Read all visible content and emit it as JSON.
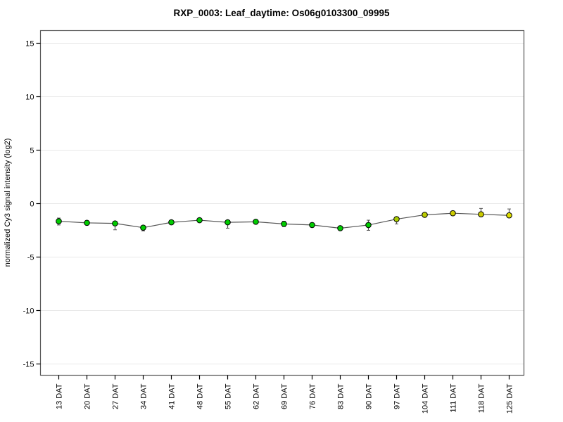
{
  "figure": {
    "background": "#FFFFFF"
  },
  "chart_data": {
    "type": "line",
    "title": "RXP_0003: Leaf_daytime: Os06g0103300_09995",
    "xlabel": "",
    "ylabel": "normalized Cy3 signal intensity (log2)",
    "ylim": [
      -16.1,
      16.2
    ],
    "yticks": [
      15,
      10,
      5,
      0,
      -5,
      -10,
      -15
    ],
    "ytick_labels": [
      "15",
      "10",
      "5",
      "0",
      "-5",
      "-10",
      "-15"
    ],
    "grid": true,
    "legend_position": "none",
    "categories": [
      "13 DAT",
      "20 DAT",
      "27 DAT",
      "34 DAT",
      "41 DAT",
      "48 DAT",
      "55 DAT",
      "62 DAT",
      "69 DAT",
      "76 DAT",
      "83 DAT",
      "90 DAT",
      "97 DAT",
      "104 DAT",
      "111 DAT",
      "118 DAT",
      "125 DAT"
    ],
    "series": [
      {
        "name": "normalized Cy3 signal intensity (log2)",
        "values": [
          -1.65,
          -1.8,
          -1.85,
          -2.25,
          -1.75,
          -1.55,
          -1.75,
          -1.7,
          -1.9,
          -2.0,
          -2.3,
          -2.0,
          -1.45,
          -1.05,
          -0.9,
          -1.0,
          -1.1
        ],
        "err_down": [
          0.35,
          0.2,
          0.6,
          0.3,
          0.2,
          0.1,
          0.55,
          0.1,
          0.25,
          0.15,
          0.15,
          0.5,
          0.45,
          0.1,
          0.1,
          0.15,
          0.2
        ],
        "err_up": [
          0.3,
          0.2,
          0.15,
          0.1,
          0.2,
          0.1,
          0.15,
          0.1,
          0.25,
          0.15,
          0.15,
          0.45,
          0.15,
          0.1,
          0.1,
          0.55,
          0.6
        ],
        "point_colors": [
          "#00CC00",
          "#00CC00",
          "#00CC00",
          "#00CC00",
          "#00CC00",
          "#00CC00",
          "#00CC00",
          "#00CC00",
          "#00CC00",
          "#00CC00",
          "#00CC00",
          "#00CC00",
          "#AACC00",
          "#BBCC00",
          "#CCCC00",
          "#CCCC00",
          "#DDDD00"
        ],
        "line_color": "#555555",
        "point_stroke": "#000000"
      }
    ],
    "colors": {
      "grid": "#E8E8E8",
      "axis": "#000000",
      "box": "#555555",
      "error_bar": "#555555"
    }
  }
}
